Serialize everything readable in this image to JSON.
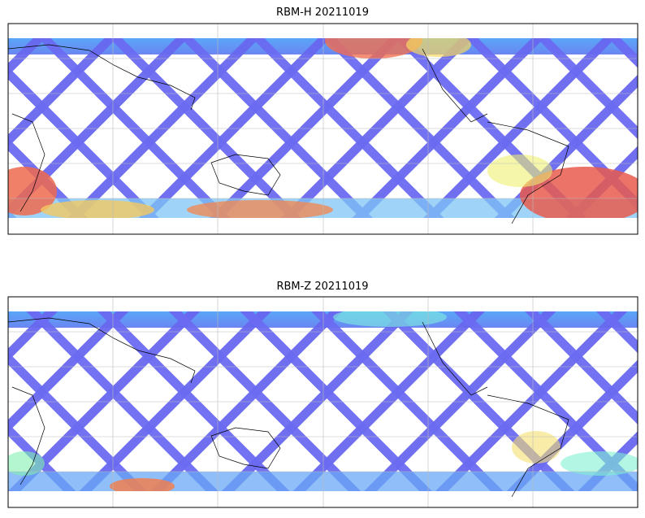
{
  "maps": [
    {
      "title": "RBM-H 20211019"
    },
    {
      "title": "RBM-Z 20211019"
    }
  ]
}
